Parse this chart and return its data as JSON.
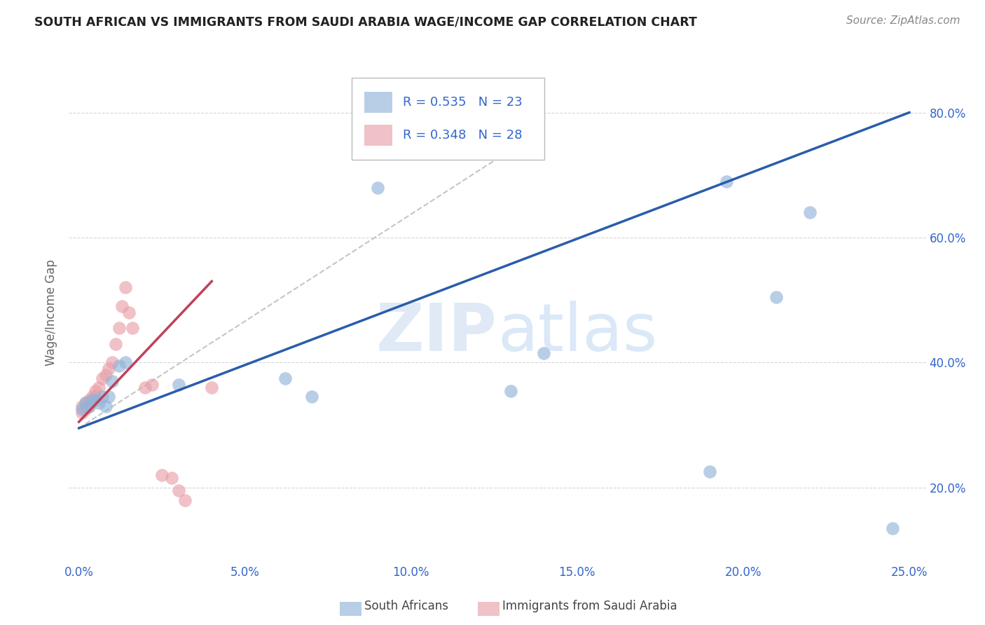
{
  "title": "SOUTH AFRICAN VS IMMIGRANTS FROM SAUDI ARABIA WAGE/INCOME GAP CORRELATION CHART",
  "source": "Source: ZipAtlas.com",
  "ylabel": "Wage/Income Gap",
  "color_blue": "#92b4d9",
  "color_pink": "#e8a0a8",
  "color_blue_line": "#2a5caa",
  "color_pink_line": "#c0405a",
  "color_text_blue": "#3366cc",
  "color_grid": "#cccccc",
  "color_dashed": "#bbbbbb",
  "blue_scatter_x": [
    0.001,
    0.002,
    0.003,
    0.004,
    0.005,
    0.006,
    0.007,
    0.008,
    0.009,
    0.01,
    0.012,
    0.014,
    0.03,
    0.062,
    0.07,
    0.09,
    0.13,
    0.14,
    0.195,
    0.21,
    0.22,
    0.19,
    0.245
  ],
  "blue_scatter_y": [
    0.325,
    0.335,
    0.33,
    0.34,
    0.34,
    0.335,
    0.345,
    0.33,
    0.345,
    0.37,
    0.395,
    0.4,
    0.365,
    0.375,
    0.345,
    0.68,
    0.355,
    0.415,
    0.69,
    0.505,
    0.64,
    0.225,
    0.135
  ],
  "pink_scatter_x": [
    0.001,
    0.001,
    0.002,
    0.002,
    0.003,
    0.003,
    0.004,
    0.004,
    0.005,
    0.005,
    0.006,
    0.007,
    0.008,
    0.009,
    0.01,
    0.011,
    0.012,
    0.013,
    0.014,
    0.015,
    0.016,
    0.02,
    0.022,
    0.025,
    0.028,
    0.03,
    0.032,
    0.04
  ],
  "pink_scatter_y": [
    0.32,
    0.33,
    0.325,
    0.335,
    0.33,
    0.34,
    0.34,
    0.345,
    0.345,
    0.355,
    0.36,
    0.375,
    0.38,
    0.39,
    0.4,
    0.43,
    0.455,
    0.49,
    0.52,
    0.48,
    0.455,
    0.36,
    0.365,
    0.22,
    0.215,
    0.195,
    0.18,
    0.36
  ],
  "blue_line_x": [
    0.0,
    0.25
  ],
  "blue_line_y": [
    0.295,
    0.8
  ],
  "pink_line_x": [
    0.0,
    0.04
  ],
  "pink_line_y": [
    0.305,
    0.53
  ],
  "dashed_line_x": [
    0.0,
    0.13
  ],
  "dashed_line_y": [
    0.295,
    0.74
  ],
  "xlim": [
    -0.003,
    0.255
  ],
  "ylim": [
    0.08,
    0.88
  ],
  "xticks": [
    0.0,
    0.05,
    0.1,
    0.15,
    0.2,
    0.25
  ],
  "yticks": [
    0.2,
    0.4,
    0.6,
    0.8
  ],
  "ytick_labels": [
    "20.0%",
    "40.0%",
    "60.0%",
    "80.0%"
  ]
}
